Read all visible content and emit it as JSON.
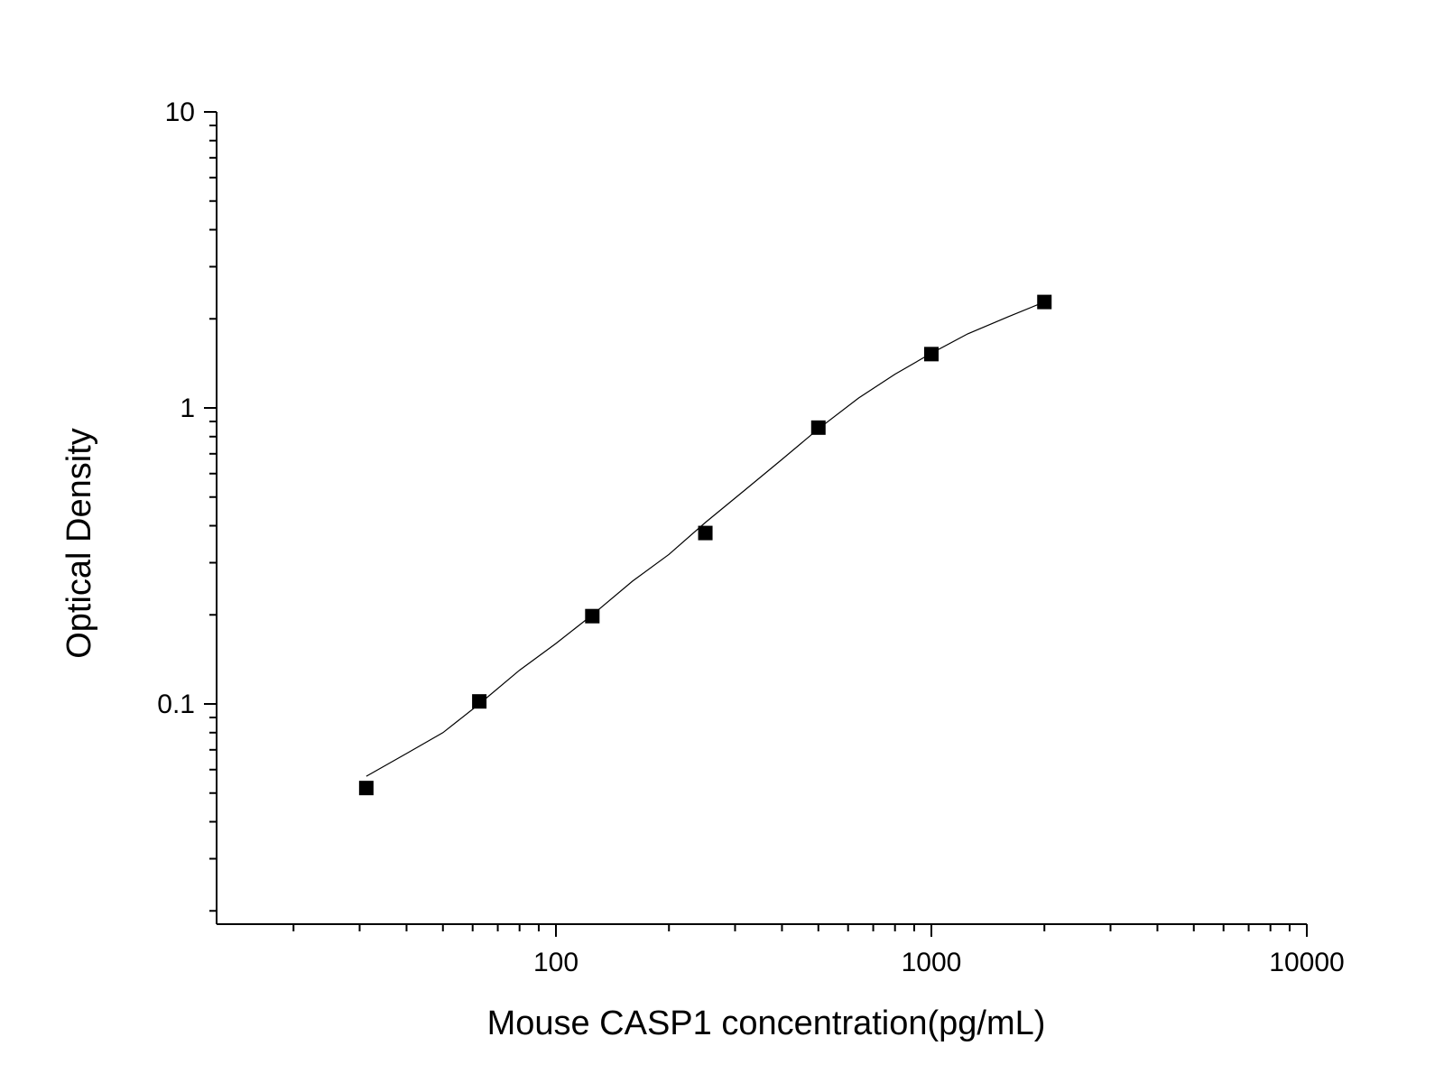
{
  "chart_data": {
    "type": "scatter",
    "title": "",
    "xlabel": "Mouse CASP1 concentration(pg/mL)",
    "ylabel": "Optical Density",
    "x_scale": "log",
    "y_scale": "log",
    "xlim": [
      10,
      10000
    ],
    "ylim": [
      0.02,
      10
    ],
    "x_tick_labels": [
      "100",
      "1000",
      "10000"
    ],
    "y_tick_labels": [
      "0.1",
      "1",
      "10"
    ],
    "grid": false,
    "legend": "none",
    "colors": {
      "points": "#000000",
      "curve": "#000000"
    },
    "series": [
      {
        "x": [
          31.25,
          62.5,
          125,
          250,
          500,
          1000,
          2000
        ],
        "y": [
          0.052,
          0.102,
          0.198,
          0.378,
          0.858,
          1.52,
          2.28
        ]
      }
    ],
    "fit_curve": {
      "x": [
        31.25,
        40,
        50,
        62.5,
        80,
        100,
        125,
        160,
        200,
        250,
        320,
        400,
        500,
        640,
        800,
        1000,
        1250,
        1600,
        2000
      ],
      "y": [
        0.057,
        0.068,
        0.08,
        0.1,
        0.13,
        0.16,
        0.2,
        0.26,
        0.32,
        0.41,
        0.53,
        0.67,
        0.85,
        1.08,
        1.3,
        1.53,
        1.78,
        2.03,
        2.28
      ]
    }
  }
}
